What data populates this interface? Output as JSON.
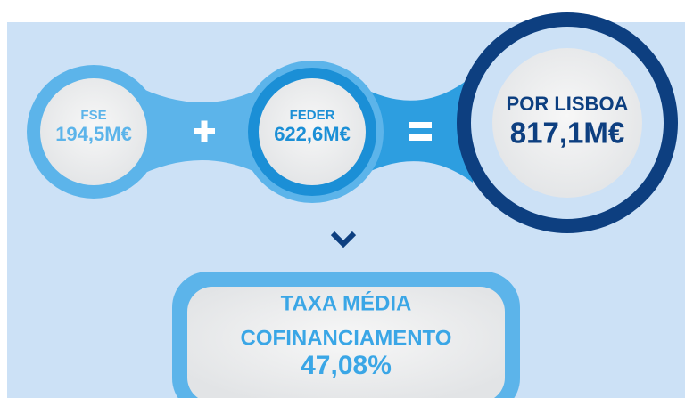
{
  "funds": [
    {
      "label": "FSE",
      "value": "194,5M€"
    },
    {
      "label": "FEDER",
      "value": "622,6M€"
    }
  ],
  "total": {
    "label": "POR LISBOA",
    "value": "817,1M€"
  },
  "rate": {
    "line1": "TAXA MÉDIA",
    "line2": "COFINANCIAMENTO",
    "value": "47,08%"
  }
}
